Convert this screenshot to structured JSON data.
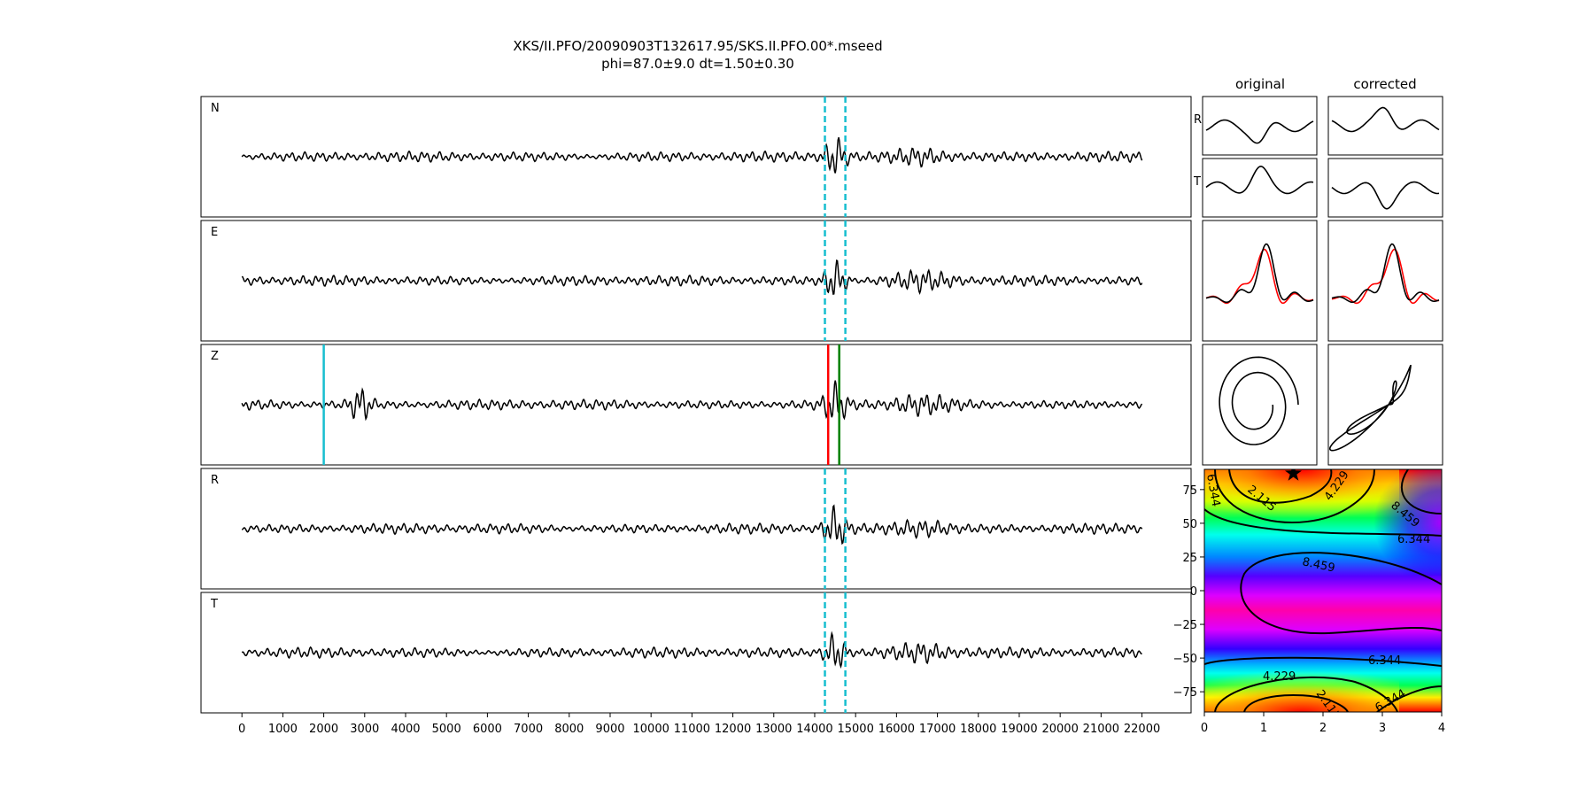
{
  "title": {
    "line1": "XKS/II.PFO/20090903T132617.95/SKS.II.PFO.00*.mseed",
    "line2": "phi=87.0±9.0 dt=1.50±0.30"
  },
  "chart_data": [
    {
      "type": "line",
      "panel": "seismograms",
      "xlim": [
        -1000,
        23200
      ],
      "x_ticks": [
        0,
        1000,
        2000,
        3000,
        4000,
        5000,
        6000,
        7000,
        8000,
        9000,
        10000,
        11000,
        12000,
        13000,
        14000,
        15000,
        16000,
        17000,
        18000,
        19000,
        20000,
        21000,
        22000
      ],
      "x_tick_labels": [
        "0",
        "1000",
        "2000",
        "3000",
        "4000",
        "5000",
        "6000",
        "7000",
        "8000",
        "9000",
        "10000",
        "11000",
        "12000",
        "13000",
        "14000",
        "15000",
        "16000",
        "17000",
        "18000",
        "19000",
        "20000",
        "21000",
        "22000"
      ],
      "trace_range": [
        0,
        22000
      ],
      "window_lines": [
        14250,
        14750
      ],
      "window_line_color": "#17becf",
      "traces": [
        {
          "name": "N",
          "label": "N",
          "show_window": true,
          "markers": []
        },
        {
          "name": "E",
          "label": "E",
          "show_window": true,
          "markers": []
        },
        {
          "name": "Z",
          "label": "Z",
          "show_window": false,
          "markers": [
            {
              "x": 2000,
              "color": "#17becf"
            },
            {
              "x": 14330,
              "color": "#ff0000"
            },
            {
              "x": 14600,
              "color": "#008000"
            }
          ]
        },
        {
          "name": "R",
          "label": "R",
          "show_window": true,
          "markers": []
        },
        {
          "name": "T",
          "label": "T",
          "show_window": true,
          "markers": []
        }
      ]
    },
    {
      "type": "line",
      "panel": "waveform-comparison",
      "column_titles": [
        "original",
        "corrected"
      ],
      "row_labels": [
        "R",
        "T"
      ],
      "overlay_colors": [
        "#ff0000",
        "#000000"
      ]
    },
    {
      "type": "line",
      "panel": "particle-motion",
      "columns": [
        "original",
        "corrected"
      ]
    },
    {
      "type": "heatmap",
      "panel": "error-surface",
      "xlim": [
        0,
        4
      ],
      "ylim": [
        -90,
        90
      ],
      "x_ticks": [
        0,
        1,
        2,
        3,
        4
      ],
      "y_ticks": [
        -75,
        -50,
        -25,
        0,
        25,
        50,
        75
      ],
      "contour_levels": [
        "2.115",
        "4.229",
        "6.344",
        "8.459"
      ],
      "best_fit": {
        "dt": 1.5,
        "phi": 87.0
      },
      "colormap": "hsv"
    }
  ]
}
